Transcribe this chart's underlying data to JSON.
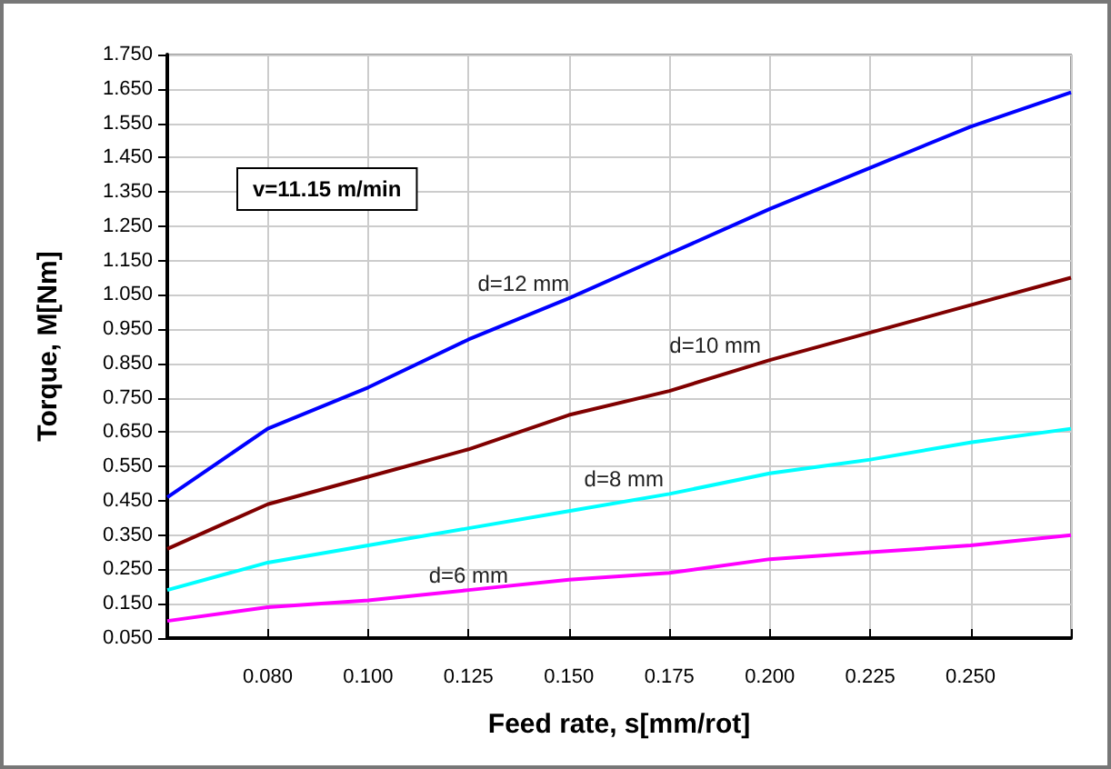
{
  "chart_data": {
    "type": "line",
    "xlabel": "Feed rate, s[mm/rot]",
    "ylabel": "Torque, M[Nm]",
    "annotations": [
      "v=11.15 m/min"
    ],
    "categories": [
      null,
      "0.080",
      "0.100",
      "0.125",
      "0.150",
      "0.175",
      "0.200",
      "0.225",
      "0.250",
      null
    ],
    "series": [
      {
        "name": "d=12 mm",
        "color": "#0000ff",
        "values": [
          0.46,
          0.66,
          0.78,
          0.92,
          1.04,
          1.17,
          1.3,
          1.42,
          1.54,
          1.64
        ]
      },
      {
        "name": "d=10 mm",
        "color": "#800000",
        "values": [
          0.31,
          0.44,
          0.52,
          0.6,
          0.7,
          0.77,
          0.86,
          0.94,
          1.02,
          1.1
        ]
      },
      {
        "name": "d=8 mm",
        "color": "#00ffff",
        "values": [
          0.19,
          0.27,
          0.32,
          0.37,
          0.42,
          0.47,
          0.53,
          0.57,
          0.62,
          0.66
        ]
      },
      {
        "name": "d=6 mm",
        "color": "#ff00ff",
        "values": [
          0.1,
          0.14,
          0.16,
          0.19,
          0.22,
          0.24,
          0.28,
          0.3,
          0.32,
          0.35
        ]
      }
    ],
    "ylim": [
      0.05,
      1.75
    ],
    "yticks": [
      {
        "value": 0.05,
        "label": "0.050"
      },
      {
        "value": 0.15,
        "label": "0.150"
      },
      {
        "value": 0.25,
        "label": "0.250"
      },
      {
        "value": 0.35,
        "label": "0.350"
      },
      {
        "value": 0.45,
        "label": "0.450"
      },
      {
        "value": 0.55,
        "label": "0.550"
      },
      {
        "value": 0.65,
        "label": "0.650"
      },
      {
        "value": 0.75,
        "label": "0.750"
      },
      {
        "value": 0.85,
        "label": "0.850"
      },
      {
        "value": 0.95,
        "label": "0.950"
      },
      {
        "value": 1.05,
        "label": "1.050"
      },
      {
        "value": 1.15,
        "label": "1.150"
      },
      {
        "value": 1.25,
        "label": "1.250"
      },
      {
        "value": 1.35,
        "label": "1.350"
      },
      {
        "value": 1.45,
        "label": "1.450"
      },
      {
        "value": 1.55,
        "label": "1.550"
      },
      {
        "value": 1.65,
        "label": "1.650"
      },
      {
        "value": 1.75,
        "label": "1.750"
      }
    ],
    "grid": true,
    "legend": false,
    "marker": "none",
    "line_style": "solid"
  }
}
